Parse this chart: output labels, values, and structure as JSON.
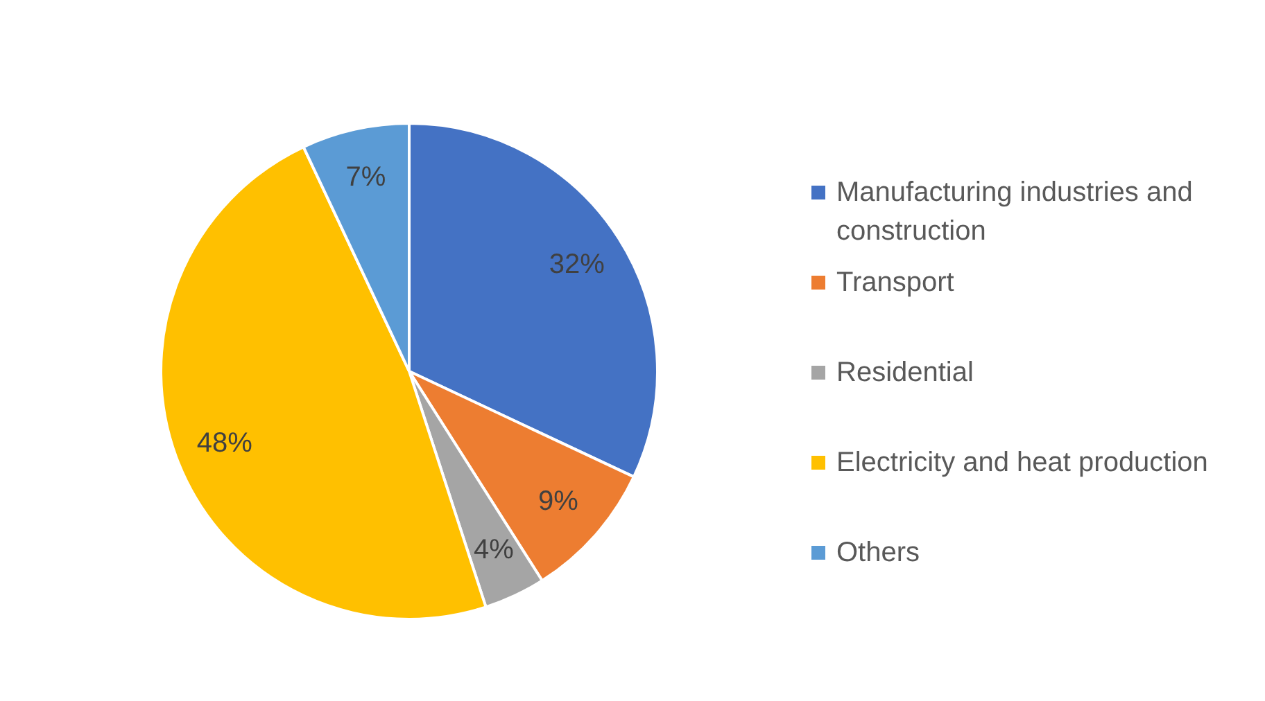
{
  "chart_data": {
    "type": "pie",
    "categories": [
      "Manufacturing industries and construction",
      "Transport",
      "Residential",
      "Electricity and heat production",
      "Others"
    ],
    "values": [
      32,
      9,
      4,
      48,
      7
    ],
    "colors": [
      "#4472c4",
      "#ed7d31",
      "#a5a5a5",
      "#ffc000",
      "#5b9bd5"
    ],
    "value_labels": [
      "32%",
      "9%",
      "4%",
      "48%",
      "7%"
    ],
    "legend": "right"
  }
}
